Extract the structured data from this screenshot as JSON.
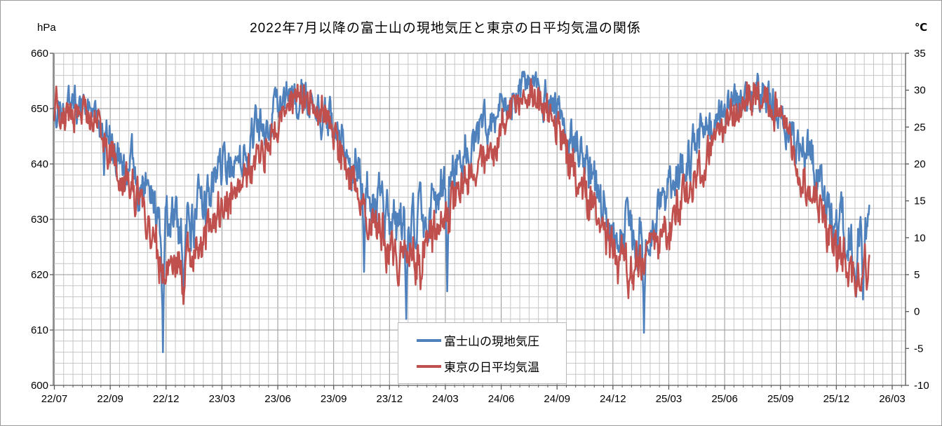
{
  "chart_data": {
    "type": "line",
    "title": "2022年7月以降の富士山の現地気圧と東京の日平均気温の関係",
    "left_axis": {
      "label": "hPa",
      "min": 600,
      "max": 660,
      "major_step": 10,
      "minor_step": 2
    },
    "right_axis": {
      "label": "℃",
      "min": -10,
      "max": 35,
      "major_step": 5
    },
    "x_axis": {
      "start_label": "22/07",
      "tick_labels": [
        "22/07",
        "22/09",
        "22/12",
        "23/03",
        "23/06",
        "23/09",
        "23/12",
        "24/03",
        "24/06",
        "24/09",
        "24/12",
        "25/03",
        "25/06",
        "25/09",
        "25/12",
        "26/03"
      ],
      "days_per_major_tick": 90,
      "days_per_minor_tick": 15,
      "data_days": 1314,
      "axis_total_days": 1371
    },
    "grid": {
      "minor_color": "#c6c6c6",
      "major_color": "#949494",
      "axis_color": "#595959"
    },
    "legend": {
      "border_color": "#b9b9b9",
      "background": "#ffffff"
    },
    "series": [
      {
        "name": "富士山の現地気圧",
        "color": "#4F81BD",
        "axis": "left",
        "line_width": 2.6,
        "monthly_mean": [
          650.0,
          650.5,
          646.5,
          641.0,
          637.0,
          629.5,
          628.5,
          631.0,
          636.5,
          641.0,
          644.5,
          649.0,
          652.0,
          651.5,
          648.0,
          641.5,
          637.0,
          630.5,
          627.5,
          629.5,
          634.5,
          640.5,
          645.0,
          649.5,
          652.5,
          653.0,
          650.0,
          643.5,
          638.0,
          630.0,
          627.5,
          628.5,
          635.0,
          641.0,
          645.5,
          650.0,
          652.0,
          653.0,
          650.0,
          643.5,
          637.5,
          629.5,
          625.5,
          628.0
        ],
        "noise": {
          "seed": 1234567,
          "persistence": 0.62,
          "amp_base": 3.0,
          "amp_winter_extra": 1.6,
          "jitter": 0.7
        },
        "soft_max": 656.5,
        "spikes": [
          {
            "day": 80,
            "value": 638
          },
          {
            "day": 175,
            "value": 606
          },
          {
            "day": 208,
            "value": 615
          },
          {
            "day": 499,
            "value": 620.5
          },
          {
            "day": 567,
            "value": 612
          },
          {
            "day": 633,
            "value": 617
          },
          {
            "day": 950,
            "value": 609.5
          },
          {
            "day": 1292,
            "value": 616
          },
          {
            "day": 1303,
            "value": 615.5
          },
          {
            "day": 1313,
            "value": 632.5
          }
        ]
      },
      {
        "name": "東京の日平均気温",
        "color": "#C0504D",
        "axis": "right",
        "line_width": 2.6,
        "monthly_mean": [
          27.4,
          27.5,
          24.4,
          17.2,
          14.5,
          7.5,
          5.7,
          7.3,
          12.9,
          16.3,
          19.0,
          23.2,
          28.7,
          29.2,
          26.7,
          18.9,
          14.4,
          9.4,
          6.6,
          8.5,
          10.8,
          17.1,
          20.0,
          23.1,
          28.7,
          29.0,
          26.5,
          19.6,
          13.9,
          8.1,
          5.9,
          6.8,
          11.0,
          16.5,
          20.5,
          24.5,
          28.9,
          29.5,
          26.5,
          18.5,
          13.0,
          7.5,
          5.0,
          6.5
        ],
        "noise": {
          "seed": 987654,
          "persistence": 0.55,
          "amp_base": 2.1,
          "amp_winter_extra": 0.8,
          "jitter": 0.8
        },
        "soft_max": 32.0,
        "spikes": [
          {
            "day": 3,
            "value": 30.5
          },
          {
            "day": 208,
            "value": 1.0
          },
          {
            "day": 590,
            "value": 3.0
          },
          {
            "day": 925,
            "value": 1.8
          },
          {
            "day": 1300,
            "value": 2.8
          },
          {
            "day": 1313,
            "value": 7.6
          }
        ]
      }
    ]
  }
}
